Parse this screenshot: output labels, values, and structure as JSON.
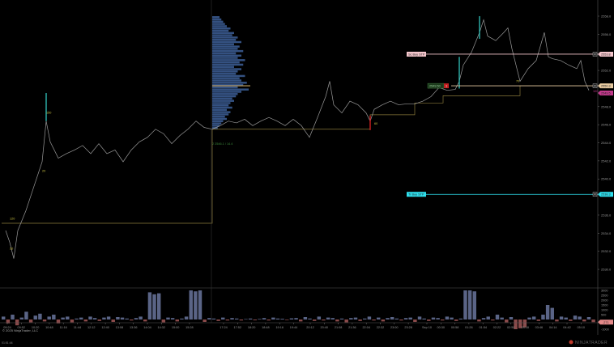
{
  "app": {
    "copyright": "© 2025 NinjaTrader, LLC",
    "timer": "01:51:44",
    "brand": "NINJATRADER",
    "colors": {
      "background": "#000000",
      "price_line": "#9a9a9a",
      "profile": "#3a5a8f",
      "poc": "#c9a765",
      "stop_line": "#8a7a3a",
      "sc_line": "#f4c6cc",
      "tr_line": "#2fe0ee",
      "entry_line": "#e6c9a0",
      "last_tag": "#c23a8c",
      "volume_up": "#5a6486",
      "volume_down": "#8a4a4a"
    }
  },
  "chart_data": {
    "type": "line",
    "title": "",
    "xlabel": "",
    "ylabel": "",
    "ylim": [
      2529,
      2559.2
    ],
    "grid": false,
    "price_axis_ticks": [
      "2558.0",
      "2556.0",
      "2552.0",
      "2548.0",
      "2546.0",
      "2544.0",
      "2542.0",
      "2540.0",
      "2536.0",
      "2534.0",
      "2532.0",
      "2530.0"
    ],
    "price_axis_tick_values": [
      2558,
      2556,
      2552,
      2548,
      2546,
      2544,
      2542,
      2540,
      2536,
      2534,
      2532,
      2530
    ],
    "time_axis_ticks": [
      "09:24",
      "09:52",
      "10:20",
      "10:48",
      "11:16",
      "11:44",
      "12:12",
      "12:40",
      "13:08",
      "13:36",
      "14:04",
      "14:32",
      "15:00",
      "15:28",
      "17:24",
      "17:52",
      "18:20",
      "18:48",
      "19:16",
      "19:44",
      "20:12",
      "20:40",
      "21:08",
      "21:36",
      "22:04",
      "22:32",
      "23:00",
      "23:28",
      "Sep 10",
      "00:30",
      "00:58",
      "01:26",
      "01:54",
      "02:22",
      "02:50",
      "03:18",
      "03:46",
      "04:14",
      "04:42",
      "05:10"
    ],
    "price_series": {
      "name": "Price",
      "points": [
        [
          1,
          2534.3
        ],
        [
          2,
          2533.0
        ],
        [
          3,
          2531.2
        ],
        [
          4,
          2534.3
        ],
        [
          6,
          2536.5
        ],
        [
          8,
          2539.2
        ],
        [
          10,
          2541.9
        ],
        [
          11,
          2546.4
        ],
        [
          12,
          2544.1
        ],
        [
          14,
          2542.3
        ],
        [
          16,
          2542.8
        ],
        [
          18,
          2543.2
        ],
        [
          20,
          2543.7
        ],
        [
          22,
          2542.8
        ],
        [
          24,
          2543.9
        ],
        [
          26,
          2542.8
        ],
        [
          28,
          2543.2
        ],
        [
          30,
          2541.9
        ],
        [
          32,
          2543.2
        ],
        [
          34,
          2544.1
        ],
        [
          36,
          2544.6
        ],
        [
          38,
          2545.5
        ],
        [
          40,
          2545.0
        ],
        [
          42,
          2543.9
        ],
        [
          44,
          2544.8
        ],
        [
          46,
          2545.5
        ],
        [
          48,
          2546.4
        ],
        [
          50,
          2545.7
        ],
        [
          52,
          2545.5
        ],
        [
          54,
          2545.9
        ],
        [
          56,
          2546.4
        ],
        [
          58,
          2546.2
        ],
        [
          60,
          2546.6
        ],
        [
          62,
          2545.9
        ],
        [
          64,
          2546.4
        ],
        [
          66,
          2546.8
        ],
        [
          68,
          2546.4
        ],
        [
          70,
          2545.9
        ],
        [
          72,
          2546.6
        ],
        [
          74,
          2545.9
        ],
        [
          76,
          2544.6
        ],
        [
          78,
          2546.8
        ],
        [
          80,
          2549.1
        ],
        [
          81,
          2550.8
        ],
        [
          82,
          2548.2
        ],
        [
          84,
          2547.3
        ],
        [
          86,
          2548.6
        ],
        [
          88,
          2548.2
        ],
        [
          90,
          2547.3
        ],
        [
          91,
          2546.4
        ],
        [
          92,
          2547.7
        ],
        [
          94,
          2548.2
        ],
        [
          96,
          2548.6
        ],
        [
          98,
          2548.2
        ],
        [
          100,
          2548.3
        ],
        [
          102,
          2548.3
        ],
        [
          104,
          2548.6
        ],
        [
          106,
          2549.1
        ],
        [
          108,
          2550.1
        ],
        [
          110,
          2549.8
        ],
        [
          112,
          2549.9
        ],
        [
          113,
          2550.8
        ],
        [
          114,
          2552.6
        ],
        [
          116,
          2554.0
        ],
        [
          118,
          2556.2
        ],
        [
          119,
          2557.6
        ],
        [
          120,
          2555.8
        ],
        [
          122,
          2555.3
        ],
        [
          124,
          2556.2
        ],
        [
          125,
          2556.7
        ],
        [
          126,
          2554.4
        ],
        [
          128,
          2550.8
        ],
        [
          130,
          2552.2
        ],
        [
          132,
          2553.1
        ],
        [
          134,
          2556.2
        ],
        [
          135,
          2553.5
        ],
        [
          136,
          2553.3
        ],
        [
          138,
          2553.1
        ],
        [
          140,
          2552.6
        ],
        [
          142,
          2552.2
        ],
        [
          143,
          2553.1
        ],
        [
          144,
          2550.8
        ],
        [
          145,
          2549.8
        ]
      ]
    },
    "stop_line": {
      "name": "Trailing stop",
      "points": [
        [
          0,
          2535.1
        ],
        [
          52,
          2535.1
        ],
        [
          52,
          2545.5
        ],
        [
          91,
          2545.5
        ],
        [
          91,
          2547.1
        ],
        [
          102,
          2547.1
        ],
        [
          102,
          2548.4
        ],
        [
          109,
          2548.4
        ],
        [
          109,
          2549.2
        ],
        [
          128,
          2549.2
        ],
        [
          128,
          2550.3
        ],
        [
          143,
          2550.3
        ]
      ]
    },
    "volume_profile": {
      "name": "Session volume profile",
      "price_range": [
        2545.5,
        2558.0
      ],
      "poc_price": 2550.3,
      "relative_volumes": [
        0.2,
        0.25,
        0.3,
        0.35,
        0.4,
        0.5,
        0.45,
        0.6,
        0.55,
        0.7,
        0.65,
        0.8,
        0.6,
        0.75,
        0.7,
        0.85,
        0.65,
        0.8,
        0.7,
        0.9,
        0.75,
        0.85,
        0.6,
        0.8,
        0.7,
        0.65,
        0.9,
        0.75,
        0.8,
        0.95,
        0.85,
        0.7,
        1.0,
        0.8,
        0.7,
        0.65,
        0.55,
        0.6,
        0.5,
        0.45,
        0.55,
        0.4,
        0.5,
        0.45,
        0.35,
        0.4,
        0.3,
        0.25,
        0.2,
        0.15
      ]
    },
    "levels": [
      {
        "name": "Sc Buy STP",
        "price": 2553.8,
        "tag": "2553.8",
        "label": "Sc Buy STP",
        "color": "#f4c6cc",
        "from_bar": 100
      },
      {
        "name": "Entry",
        "price": 2550.3,
        "tag": "2550.3",
        "label": "2549.50",
        "qty": "1",
        "color": "#e6c9a0",
        "from_bar": 111
      },
      {
        "name": "Last",
        "price": 2549.5,
        "tag": "2549.5",
        "color": "#c23a8c"
      },
      {
        "name": "Tr Buy STP",
        "price": 2538.3,
        "tag": "2538.3",
        "label": "Tr Buy STP",
        "color": "#2fe0ee",
        "from_bar": 100
      }
    ],
    "annotations": [
      {
        "text": "120",
        "bar": 2,
        "price": 2535.5
      },
      {
        "text": "20",
        "bar": 2,
        "price": 2532.2
      },
      {
        "text": "20",
        "bar": 10,
        "price": 2540.8
      },
      {
        "text": "150",
        "bar": 11,
        "price": 2547.2
      },
      {
        "text": "60",
        "bar": 92,
        "price": 2546.0
      },
      {
        "text": "70",
        "bar": 127,
        "price": 2550.7
      },
      {
        "text": "100",
        "bar": 146,
        "price": 2549.6
      },
      {
        "text": "2 2546.1 / 14.4",
        "bar": 52,
        "price": 2543.8
      }
    ],
    "volume": {
      "axis_ticks": [
        "3000",
        "2500",
        "2000",
        "1500",
        "1000",
        "500",
        "-1000"
      ],
      "axis_tick_values": [
        3000,
        2500,
        2000,
        1500,
        1000,
        500,
        -1000
      ],
      "ylim": [
        -1200,
        3200
      ],
      "current_tag": "-271",
      "bars": [
        300,
        -400,
        500,
        -600,
        200,
        800,
        -300,
        400,
        600,
        -200,
        300,
        500,
        -400,
        200,
        300,
        -300,
        100,
        200,
        -200,
        300,
        150,
        -150,
        200,
        300,
        -250,
        250,
        200,
        100,
        -100,
        150,
        300,
        -200,
        2800,
        2600,
        2700,
        -300,
        200,
        150,
        -200,
        100,
        300,
        3000,
        2900,
        3000,
        -250,
        150,
        100,
        -150,
        200,
        -100,
        150,
        100,
        -100,
        50,
        100,
        -80,
        60,
        150,
        -100,
        200,
        100,
        80,
        -60,
        120,
        150,
        -200,
        250,
        100,
        -150,
        300,
        -100,
        200,
        150,
        -200,
        100,
        -300,
        150,
        200,
        -150,
        100,
        300,
        -100,
        200,
        -200,
        150,
        250,
        100,
        -100,
        150,
        200,
        -250,
        300,
        100,
        -150,
        200,
        150,
        -100,
        300,
        200,
        -150,
        100,
        3000,
        3000,
        2900,
        -200,
        150,
        300,
        -100,
        500,
        200,
        -300,
        250,
        -1000,
        -900,
        -800,
        200,
        300,
        -150,
        500,
        1500,
        1200,
        -200,
        300,
        200,
        -150,
        400,
        300,
        -200,
        250,
        -271
      ]
    }
  }
}
